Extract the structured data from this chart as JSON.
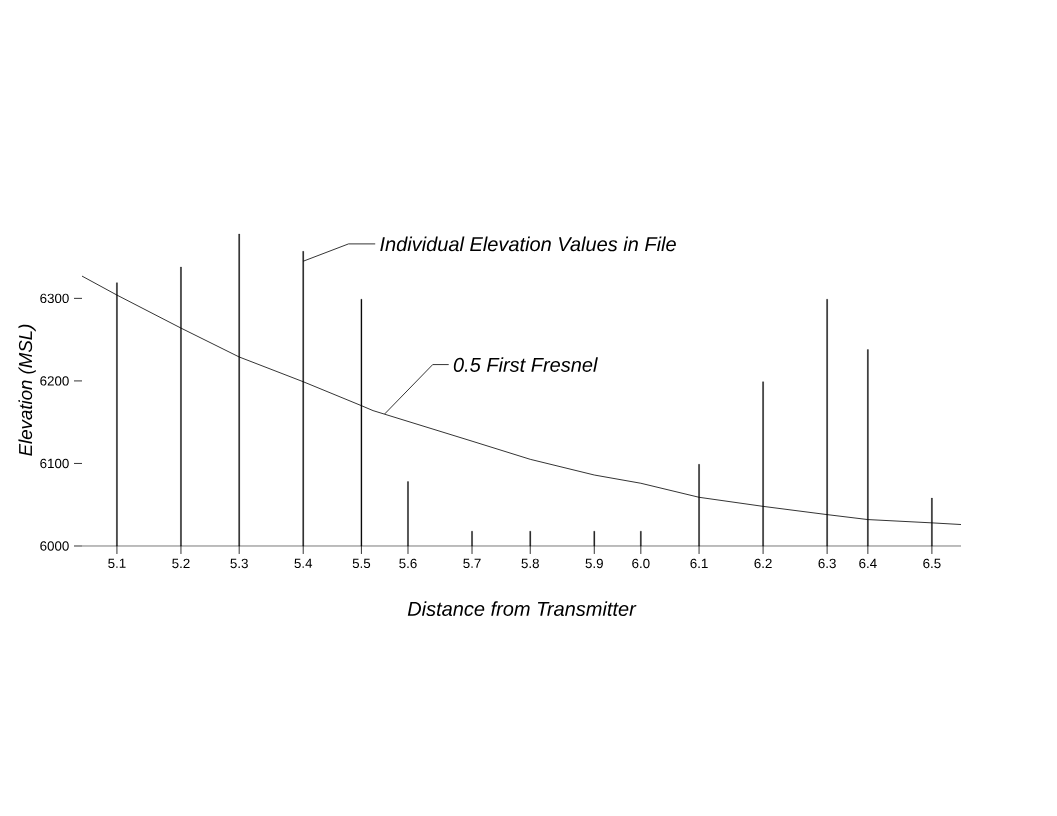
{
  "chart_data": {
    "type": "bar",
    "xlabel": "Distance from Transmitter",
    "ylabel": "Elevation (MSL)",
    "xlim": [
      5.04,
      6.55
    ],
    "ylim": [
      6000,
      6378
    ],
    "xticks": [
      {
        "value": 5.1,
        "label": "5.1"
      },
      {
        "value": 5.21,
        "label": "5.2"
      },
      {
        "value": 5.31,
        "label": "5.3"
      },
      {
        "value": 5.42,
        "label": "5.4"
      },
      {
        "value": 5.52,
        "label": "5.5"
      },
      {
        "value": 5.6,
        "label": "5.6"
      },
      {
        "value": 5.71,
        "label": "5.7"
      },
      {
        "value": 5.81,
        "label": "5.8"
      },
      {
        "value": 5.92,
        "label": "5.9"
      },
      {
        "value": 6.0,
        "label": "6.0"
      },
      {
        "value": 6.1,
        "label": "6.1"
      },
      {
        "value": 6.21,
        "label": "6.2"
      },
      {
        "value": 6.32,
        "label": "6.3"
      },
      {
        "value": 6.39,
        "label": "6.4"
      },
      {
        "value": 6.5,
        "label": "6.5"
      }
    ],
    "yticks": [
      6000,
      6100,
      6200,
      6300
    ],
    "series": [
      {
        "color": "#000000",
        "x": [
          5.1,
          5.21,
          5.31,
          5.42,
          5.52,
          5.6,
          5.71,
          5.81,
          5.92,
          6.0,
          6.1,
          6.21,
          6.32,
          6.39,
          6.5
        ],
        "values": [
          6319,
          6338,
          6378,
          6357,
          6299,
          6078,
          6018,
          6018,
          6018,
          6018,
          6099,
          6199,
          6299,
          6238,
          6058
        ]
      },
      {
        "type": "line",
        "color": "#000000",
        "x": [
          5.04,
          5.1,
          5.21,
          5.31,
          5.42,
          5.52,
          5.54,
          5.71,
          5.81,
          5.92,
          6.0,
          6.1,
          6.21,
          6.32,
          6.39,
          6.5,
          6.55
        ],
        "values": [
          6327,
          6304,
          6264,
          6229,
          6199,
          6170,
          6164,
          6127,
          6105,
          6086,
          6076,
          6059,
          6048,
          6038,
          6032,
          6028,
          6026
        ]
      }
    ],
    "annotations": [
      {
        "text": "Individual Elevation Values in File",
        "x": 5.42,
        "y": 6345
      },
      {
        "text": "0.5 First Fresnel",
        "x": 5.56,
        "y": 6160
      }
    ]
  }
}
